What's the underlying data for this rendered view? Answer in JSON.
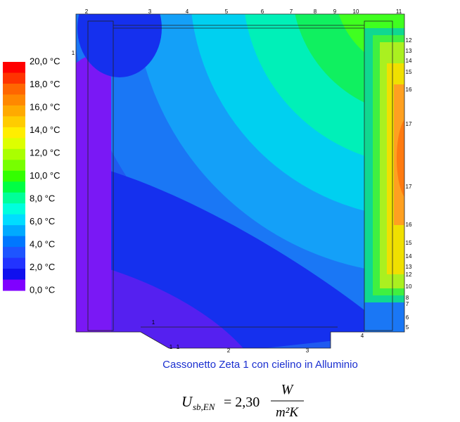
{
  "legend": {
    "labels": [
      "20,0 °C",
      "18,0 °C",
      "16,0 °C",
      "14,0 °C",
      "12,0 °C",
      "10,0 °C",
      "8,0 °C",
      "6,0 °C",
      "4,0 °C",
      "2,0 °C",
      "0,0 °C"
    ],
    "colors": [
      "#ff0000",
      "#ff3300",
      "#ff6600",
      "#ff8800",
      "#ffaa00",
      "#ffcc00",
      "#ffee00",
      "#ddff00",
      "#aaff00",
      "#77ff00",
      "#33ff00",
      "#00ff44",
      "#00ff99",
      "#00ffdd",
      "#00ddff",
      "#00aaff",
      "#0077ff",
      "#1e55ff",
      "#2233ff",
      "#1010ee",
      "#8000ff"
    ]
  },
  "contour_labels": {
    "top": [
      "2",
      "3",
      "4",
      "5",
      "6",
      "7",
      "8",
      "9",
      "10",
      "11"
    ],
    "right": [
      "12",
      "13",
      "14",
      "15",
      "16",
      "17",
      "17",
      "16",
      "15",
      "14",
      "13",
      "12",
      "10",
      "8",
      "7",
      "6",
      "5"
    ],
    "left": [
      "1"
    ],
    "bottom": [
      "1",
      "1",
      "1",
      "2",
      "3",
      "4"
    ]
  },
  "caption": "Cassonetto Zeta 1 con cielino in Alluminio",
  "formula": {
    "symbol": "U",
    "subscript": "sb,EN",
    "value": "= 2,30",
    "numerator": "W",
    "denominator": "m²K"
  }
}
